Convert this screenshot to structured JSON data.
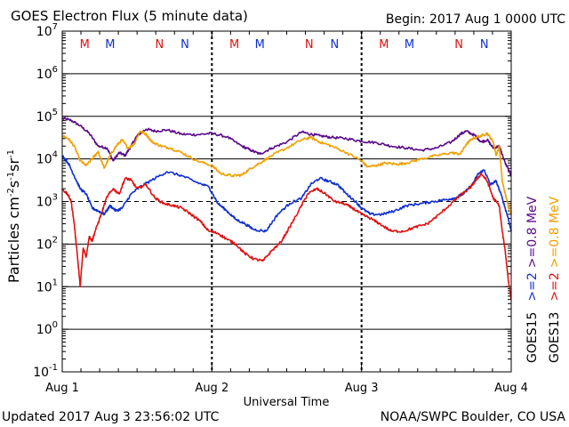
{
  "header": {
    "title": "GOES Electron Flux (5 minute data)",
    "begin": "Begin: 2017 Aug 1 0000 UTC"
  },
  "footer": {
    "updated": "Updated 2017 Aug  3 23:56:02 UTC",
    "credit": "NOAA/SWPC Boulder, CO USA"
  },
  "colors": {
    "goes15_ge2": "#1030d0",
    "goes15_ge08": "#5a0a8a",
    "goes13_ge2": "#e01010",
    "goes13_ge08": "#f0a000",
    "marker_m": "#e01010",
    "marker_n": "#1030d0"
  },
  "chart_data": {
    "type": "line",
    "title": "GOES Electron Flux (5 minute data)",
    "xlabel": "Universal Time",
    "ylabel_parts": [
      "Particles cm",
      "-2",
      "s",
      "-1",
      "sr",
      "-1"
    ],
    "x_unit": "days since 2017 Aug 1 0000 UTC",
    "xlim": [
      0,
      3
    ],
    "x_ticks": [
      {
        "x": 0,
        "label": "Aug 1"
      },
      {
        "x": 1,
        "label": "Aug 2"
      },
      {
        "x": 2,
        "label": "Aug 3"
      },
      {
        "x": 3,
        "label": "Aug 4"
      }
    ],
    "y_scale": "log",
    "ylim": [
      0.1,
      10000000
    ],
    "y_ticks": [
      {
        "exp": -1,
        "base": "10",
        "sup": "-1"
      },
      {
        "exp": 0,
        "base": "10",
        "sup": "0"
      },
      {
        "exp": 1,
        "base": "10",
        "sup": "1"
      },
      {
        "exp": 2,
        "base": "10",
        "sup": "2"
      },
      {
        "exp": 3,
        "base": "10",
        "sup": "3"
      },
      {
        "exp": 4,
        "base": "10",
        "sup": "4"
      },
      {
        "exp": 5,
        "base": "10",
        "sup": "5"
      },
      {
        "exp": 6,
        "base": "10",
        "sup": "6"
      },
      {
        "exp": 7,
        "base": "10",
        "sup": "7"
      }
    ],
    "horizontal_gridlines_exp": [
      0,
      1,
      2,
      4,
      5,
      6
    ],
    "threshold_exp": 3,
    "grid": true,
    "legend_placement": "right",
    "legend": [
      {
        "sat": "GOES15",
        "entries": [
          {
            "label": ">=2",
            "color": "#1030d0"
          },
          {
            "label": ">=0.8 MeV",
            "color": "#5a0a8a"
          }
        ]
      },
      {
        "sat": "GOES13",
        "entries": [
          {
            "label": ">=2",
            "color": "#e01010"
          },
          {
            "label": ">=0.8 MeV",
            "color": "#f0a000"
          }
        ]
      }
    ],
    "markers": [
      {
        "x": 0.15,
        "label": "M",
        "color": "#e01010"
      },
      {
        "x": 0.32,
        "label": "M",
        "color": "#1030d0"
      },
      {
        "x": 0.65,
        "label": "N",
        "color": "#e01010"
      },
      {
        "x": 0.82,
        "label": "N",
        "color": "#1030d0"
      },
      {
        "x": 1.15,
        "label": "M",
        "color": "#e01010"
      },
      {
        "x": 1.32,
        "label": "M",
        "color": "#1030d0"
      },
      {
        "x": 1.65,
        "label": "N",
        "color": "#e01010"
      },
      {
        "x": 1.82,
        "label": "N",
        "color": "#1030d0"
      },
      {
        "x": 2.15,
        "label": "M",
        "color": "#e01010"
      },
      {
        "x": 2.32,
        "label": "M",
        "color": "#1030d0"
      },
      {
        "x": 2.65,
        "label": "N",
        "color": "#e01010"
      },
      {
        "x": 2.82,
        "label": "N",
        "color": "#1030d0"
      }
    ],
    "series": [
      {
        "sat": "GOES15",
        "energy": ">=0.8 MeV",
        "color": "#5a0a8a",
        "x": [
          0,
          0.06,
          0.12,
          0.18,
          0.24,
          0.3,
          0.34,
          0.38,
          0.42,
          0.46,
          0.5,
          0.56,
          0.62,
          0.7,
          0.8,
          0.9,
          1.0,
          1.1,
          1.2,
          1.26,
          1.32,
          1.4,
          1.5,
          1.6,
          1.66,
          1.72,
          1.8,
          1.9,
          2.0,
          2.1,
          2.2,
          2.3,
          2.4,
          2.5,
          2.6,
          2.66,
          2.7,
          2.76,
          2.8,
          2.84,
          2.88,
          2.92,
          2.96,
          3.0
        ],
        "y": [
          90000,
          80000,
          60000,
          40000,
          20000,
          18000,
          9000,
          14000,
          12000,
          20000,
          35000,
          50000,
          45000,
          48000,
          38000,
          37000,
          40000,
          33000,
          20000,
          16000,
          13000,
          18000,
          25000,
          43000,
          38000,
          35000,
          32000,
          30000,
          26000,
          24000,
          20000,
          18000,
          16000,
          18000,
          25000,
          38000,
          45000,
          35000,
          25000,
          28000,
          18000,
          20000,
          8000,
          4000
        ]
      },
      {
        "sat": "GOES13",
        "energy": ">=0.8 MeV",
        "color": "#f0a000",
        "x": [
          0,
          0.04,
          0.08,
          0.12,
          0.16,
          0.2,
          0.24,
          0.28,
          0.32,
          0.36,
          0.4,
          0.44,
          0.48,
          0.52,
          0.56,
          0.6,
          0.66,
          0.72,
          0.8,
          0.9,
          1.0,
          1.06,
          1.14,
          1.2,
          1.26,
          1.32,
          1.4,
          1.5,
          1.6,
          1.66,
          1.72,
          1.8,
          1.9,
          2.0,
          2.04,
          2.1,
          2.16,
          2.24,
          2.3,
          2.4,
          2.5,
          2.6,
          2.66,
          2.7,
          2.74,
          2.8,
          2.84,
          2.88,
          2.9,
          2.92,
          2.94,
          2.96,
          2.98,
          3.0
        ],
        "y": [
          35000,
          30000,
          20000,
          9000,
          7000,
          10000,
          15000,
          6000,
          12000,
          20000,
          28000,
          18000,
          22000,
          45000,
          38000,
          25000,
          20000,
          18000,
          14000,
          9000,
          7000,
          4500,
          4000,
          4200,
          6000,
          8000,
          12000,
          18000,
          28000,
          32000,
          25000,
          20000,
          14000,
          9000,
          6500,
          7000,
          8000,
          7500,
          8000,
          10000,
          12000,
          14000,
          13000,
          22000,
          30000,
          35000,
          40000,
          25000,
          12000,
          20000,
          3000,
          1500,
          800,
          500
        ]
      },
      {
        "sat": "GOES15",
        "energy": ">=2 MeV",
        "color": "#1030d0",
        "x": [
          0,
          0.04,
          0.08,
          0.12,
          0.16,
          0.2,
          0.24,
          0.28,
          0.32,
          0.36,
          0.4,
          0.46,
          0.52,
          0.6,
          0.7,
          0.8,
          0.9,
          0.98,
          1.04,
          1.1,
          1.16,
          1.22,
          1.28,
          1.36,
          1.44,
          1.52,
          1.6,
          1.66,
          1.72,
          1.78,
          1.84,
          1.9,
          1.96,
          2.0,
          2.06,
          2.14,
          2.22,
          2.3,
          2.4,
          2.48,
          2.56,
          2.62,
          2.68,
          2.74,
          2.78,
          2.82,
          2.86,
          2.9,
          2.94,
          2.98,
          3.0
        ],
        "y": [
          12000,
          8000,
          4000,
          2000,
          1500,
          700,
          600,
          500,
          800,
          600,
          700,
          1500,
          2200,
          3200,
          5000,
          4000,
          2800,
          2200,
          900,
          600,
          380,
          300,
          220,
          200,
          500,
          900,
          1200,
          2500,
          3500,
          3000,
          2500,
          1500,
          1000,
          700,
          500,
          500,
          600,
          800,
          900,
          1000,
          1100,
          1200,
          1500,
          2500,
          4500,
          5500,
          2500,
          3000,
          1200,
          400,
          200
        ]
      },
      {
        "sat": "GOES13",
        "energy": ">=2 MeV",
        "color": "#e01010",
        "x": [
          0,
          0.04,
          0.06,
          0.08,
          0.1,
          0.12,
          0.14,
          0.16,
          0.18,
          0.2,
          0.22,
          0.26,
          0.3,
          0.34,
          0.38,
          0.42,
          0.46,
          0.5,
          0.56,
          0.62,
          0.68,
          0.74,
          0.8,
          0.86,
          0.92,
          0.98,
          1.04,
          1.1,
          1.16,
          1.22,
          1.28,
          1.34,
          1.4,
          1.46,
          1.52,
          1.58,
          1.64,
          1.7,
          1.76,
          1.82,
          1.88,
          1.94,
          2.0,
          2.06,
          2.12,
          2.2,
          2.28,
          2.36,
          2.44,
          2.52,
          2.6,
          2.66,
          2.72,
          2.76,
          2.8,
          2.84,
          2.88,
          2.92,
          2.94,
          2.96,
          2.98,
          3.0
        ],
        "y": [
          2000,
          1400,
          1000,
          300,
          60,
          10,
          80,
          50,
          150,
          120,
          200,
          500,
          1300,
          2000,
          1500,
          3500,
          3200,
          2000,
          2500,
          1200,
          900,
          800,
          700,
          500,
          350,
          200,
          180,
          130,
          100,
          60,
          45,
          40,
          70,
          110,
          250,
          600,
          1500,
          2000,
          1500,
          1000,
          900,
          700,
          500,
          400,
          300,
          200,
          200,
          250,
          300,
          500,
          900,
          1400,
          2000,
          3000,
          4500,
          3000,
          1200,
          800,
          200,
          70,
          15,
          5
        ]
      }
    ]
  }
}
